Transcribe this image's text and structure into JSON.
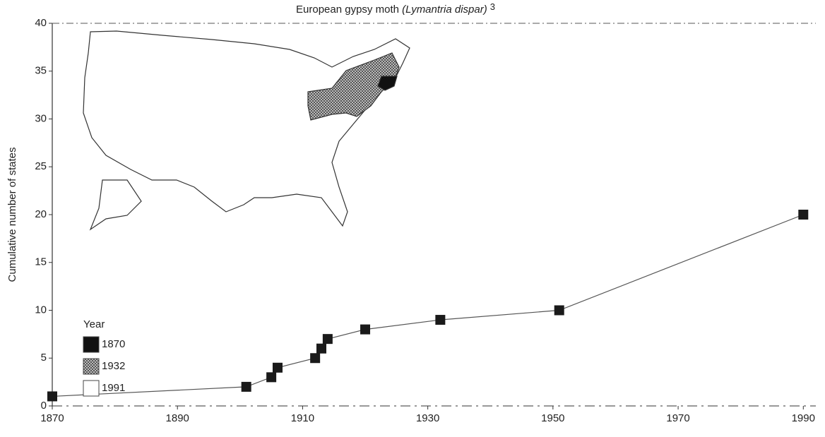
{
  "chart_data": {
    "type": "line",
    "title": "European gypsy moth",
    "title_species": "(Lymantria dispar)",
    "title_note": "3",
    "y_label": "Cumulative number of states",
    "x": [
      1870,
      1901,
      1905,
      1906,
      1912,
      1913,
      1914,
      1920,
      1932,
      1951,
      1990
    ],
    "series": [
      {
        "name": "European gypsy moth",
        "color": "#1a1a1a",
        "values": [
          1,
          2,
          3,
          4,
          5,
          6,
          7,
          8,
          9,
          10,
          20
        ]
      }
    ],
    "xlim": [
      1870,
      1992
    ],
    "ylim": [
      0,
      40
    ],
    "xticks": [
      1870,
      1890,
      1910,
      1930,
      1950,
      1970,
      1990
    ],
    "yticks": [
      0,
      5,
      10,
      15,
      20,
      25,
      30,
      35,
      40
    ],
    "legend_title": "Year",
    "legend": [
      {
        "label": "1870",
        "color": "#111"
      },
      {
        "label": "1932",
        "color": "pattern"
      },
      {
        "label": "1991",
        "color": "#fff"
      }
    ]
  }
}
